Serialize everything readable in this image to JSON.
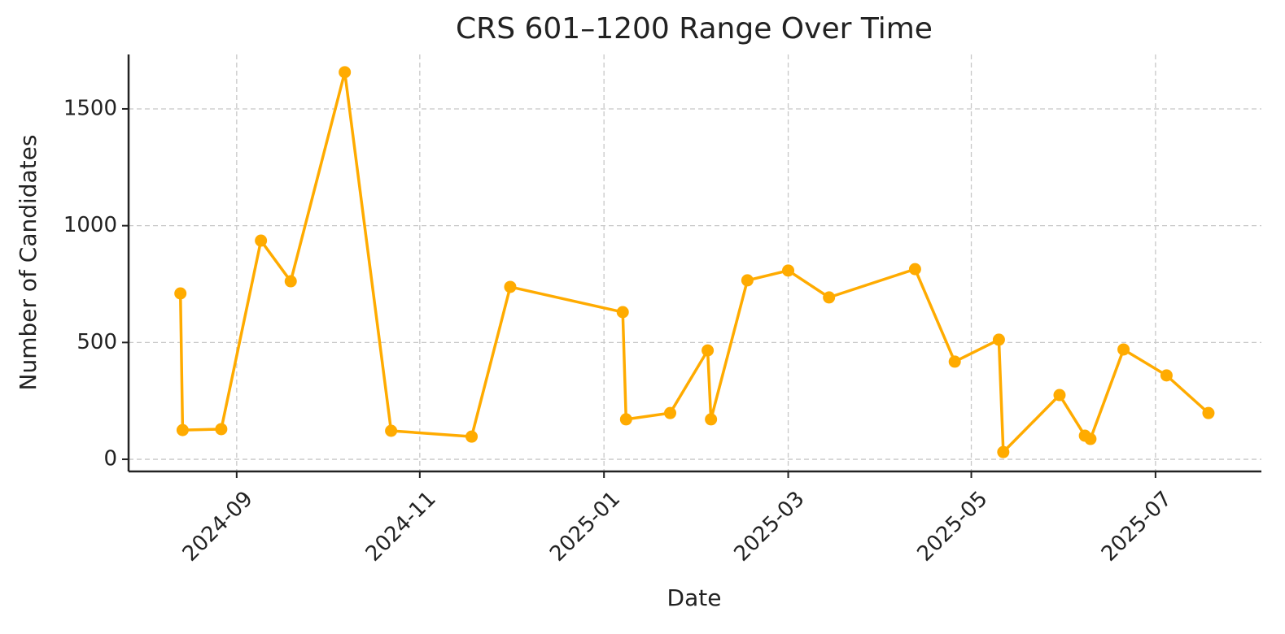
{
  "chart_data": {
    "type": "line",
    "title": "CRS 601–1200 Range Over Time",
    "x_label": "Date",
    "y_label": "Number of Candidates",
    "x": [
      2024.616,
      2024.618,
      2024.653,
      2024.689,
      2024.716,
      2024.765,
      2024.807,
      2024.88,
      2024.915,
      2025.017,
      2025.02,
      2025.06,
      2025.094,
      2025.097,
      2025.13,
      2025.167,
      2025.204,
      2025.282,
      2025.318,
      2025.358,
      2025.362,
      2025.413,
      2025.436,
      2025.441,
      2025.471,
      2025.51,
      2025.548
    ],
    "series": [
      {
        "name": "CRS 601–1200",
        "color": "#ffab00",
        "values": [
          710,
          125,
          129,
          936,
          762,
          1657,
          122,
          97,
          738,
          630,
          171,
          198,
          466,
          171,
          766,
          808,
          693,
          814,
          418,
          512,
          31,
          275,
          101,
          87,
          470,
          359,
          198
        ]
      }
    ],
    "xlim": [
      2024.569,
      2025.596
    ],
    "xticks": [
      {
        "value": 2024.667,
        "label": "2024-09"
      },
      {
        "value": 2024.833,
        "label": "2024-11"
      },
      {
        "value": 2025.0,
        "label": "2025-01"
      },
      {
        "value": 2025.167,
        "label": "2025-03"
      },
      {
        "value": 2025.333,
        "label": "2025-05"
      },
      {
        "value": 2025.5,
        "label": "2025-07"
      }
    ],
    "ylim": [
      -52,
      1733
    ],
    "yticks": [
      0,
      500,
      1000,
      1500
    ],
    "grid": true
  }
}
